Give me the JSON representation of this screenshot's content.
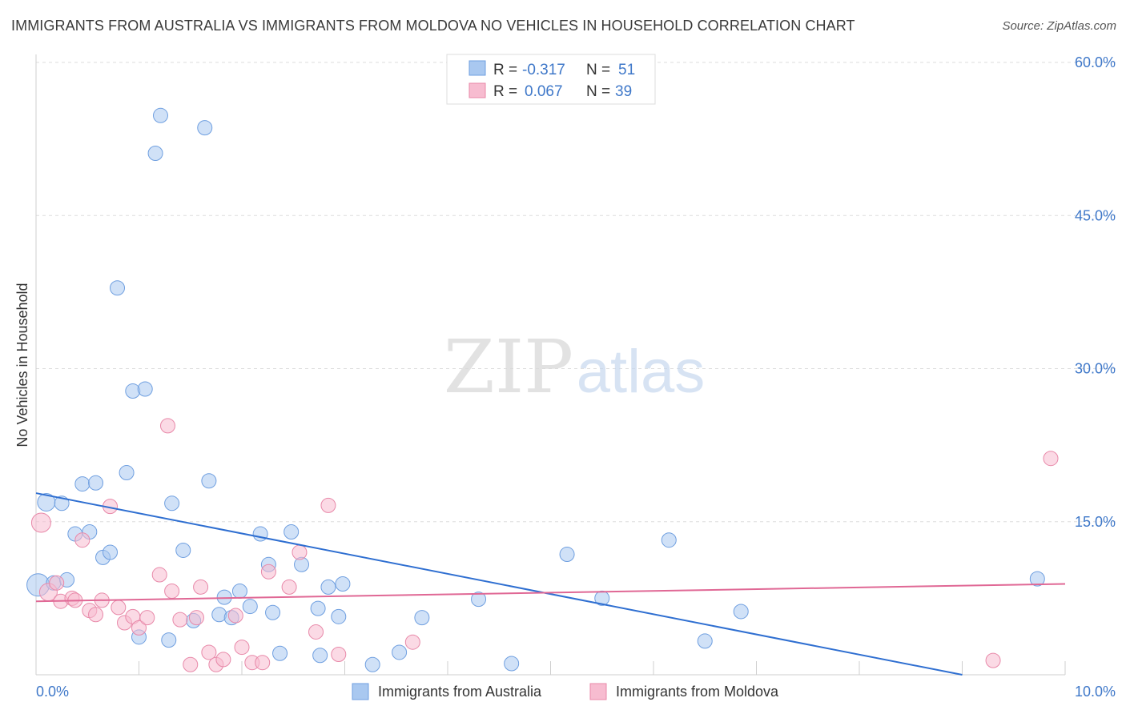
{
  "title": "IMMIGRANTS FROM AUSTRALIA VS IMMIGRANTS FROM MOLDOVA NO VEHICLES IN HOUSEHOLD CORRELATION CHART",
  "source": "Source: ZipAtlas.com",
  "watermark": {
    "zip": "ZIP",
    "atlas": "atlas"
  },
  "legend_top": [
    {
      "r_label": "R =",
      "r_value": "-0.317",
      "n_label": "N =",
      "n_value": "51",
      "color": "#a9c8f0",
      "stroke": "#6f9fe0"
    },
    {
      "r_label": "R =",
      "r_value": "0.067",
      "n_label": "N =",
      "n_value": "39",
      "color": "#f7bcd0",
      "stroke": "#e889a9"
    }
  ],
  "chart_data": {
    "type": "scatter",
    "ylabel": "No Vehicles in Household",
    "xlim": [
      0,
      10
    ],
    "ylim": [
      0,
      60
    ],
    "x_ticks": [
      "0.0%",
      "10.0%"
    ],
    "y_ticks": [
      {
        "value": 60,
        "label": "60.0%"
      },
      {
        "value": 45,
        "label": "45.0%"
      },
      {
        "value": 30,
        "label": "30.0%"
      },
      {
        "value": 15,
        "label": "15.0%"
      }
    ],
    "grid": true,
    "series": [
      {
        "name": "Immigrants from Australia",
        "color": "#a9c8f0",
        "stroke": "#6f9fe0",
        "trend": {
          "x0": 0,
          "y0": 17.8,
          "x1": 9.0,
          "y1": 0.0,
          "color": "#2f6fd1"
        },
        "points": [
          [
            0.02,
            8.8,
            14
          ],
          [
            0.1,
            16.9,
            11
          ],
          [
            0.17,
            9.0,
            9
          ],
          [
            0.25,
            16.8,
            9
          ],
          [
            0.3,
            9.3,
            9
          ],
          [
            0.38,
            13.8,
            9
          ],
          [
            0.45,
            18.7,
            9
          ],
          [
            0.52,
            14.0,
            9
          ],
          [
            0.58,
            18.8,
            9
          ],
          [
            0.65,
            11.5,
            9
          ],
          [
            0.72,
            12.0,
            9
          ],
          [
            0.79,
            37.9,
            9
          ],
          [
            0.88,
            19.8,
            9
          ],
          [
            0.94,
            27.8,
            9
          ],
          [
            1.0,
            3.7,
            9
          ],
          [
            1.06,
            28.0,
            9
          ],
          [
            1.16,
            51.1,
            9
          ],
          [
            1.21,
            54.8,
            9
          ],
          [
            1.29,
            3.4,
            9
          ],
          [
            1.32,
            16.8,
            9
          ],
          [
            1.43,
            12.2,
            9
          ],
          [
            1.53,
            5.3,
            9
          ],
          [
            1.64,
            53.6,
            9
          ],
          [
            1.68,
            19.0,
            9
          ],
          [
            1.78,
            5.9,
            9
          ],
          [
            1.83,
            7.6,
            9
          ],
          [
            1.9,
            5.6,
            9
          ],
          [
            1.98,
            8.2,
            9
          ],
          [
            2.08,
            6.7,
            9
          ],
          [
            2.18,
            13.8,
            9
          ],
          [
            2.26,
            10.8,
            9
          ],
          [
            2.3,
            6.1,
            9
          ],
          [
            2.37,
            2.1,
            9
          ],
          [
            2.48,
            14.0,
            9
          ],
          [
            2.58,
            10.8,
            9
          ],
          [
            2.74,
            6.5,
            9
          ],
          [
            2.76,
            1.9,
            9
          ],
          [
            2.84,
            8.6,
            9
          ],
          [
            2.94,
            5.7,
            9
          ],
          [
            2.98,
            8.9,
            9
          ],
          [
            3.27,
            1.0,
            9
          ],
          [
            3.53,
            2.2,
            9
          ],
          [
            3.75,
            5.6,
            9
          ],
          [
            4.3,
            7.4,
            9
          ],
          [
            4.62,
            1.1,
            9
          ],
          [
            5.16,
            11.8,
            9
          ],
          [
            5.5,
            7.5,
            9
          ],
          [
            6.15,
            13.2,
            9
          ],
          [
            6.5,
            3.3,
            9
          ],
          [
            6.85,
            6.2,
            9
          ],
          [
            9.73,
            9.4,
            9
          ]
        ]
      },
      {
        "name": "Immigrants from Moldova",
        "color": "#f7bcd0",
        "stroke": "#e889a9",
        "trend": {
          "x0": 0,
          "y0": 7.2,
          "x1": 10.0,
          "y1": 8.9,
          "color": "#e06895"
        },
        "points": [
          [
            0.05,
            14.9,
            12
          ],
          [
            0.12,
            8.1,
            11
          ],
          [
            0.2,
            9.0,
            9
          ],
          [
            0.24,
            7.2,
            9
          ],
          [
            0.35,
            7.5,
            9
          ],
          [
            0.38,
            7.3,
            9
          ],
          [
            0.45,
            13.2,
            9
          ],
          [
            0.52,
            6.3,
            9
          ],
          [
            0.58,
            5.9,
            9
          ],
          [
            0.64,
            7.3,
            9
          ],
          [
            0.72,
            16.5,
            9
          ],
          [
            0.8,
            6.6,
            9
          ],
          [
            0.86,
            5.1,
            9
          ],
          [
            0.94,
            5.7,
            9
          ],
          [
            1.0,
            4.6,
            9
          ],
          [
            1.08,
            5.6,
            9
          ],
          [
            1.2,
            9.8,
            9
          ],
          [
            1.28,
            24.4,
            9
          ],
          [
            1.32,
            8.2,
            9
          ],
          [
            1.4,
            5.4,
            9
          ],
          [
            1.5,
            1.0,
            9
          ],
          [
            1.56,
            5.6,
            9
          ],
          [
            1.6,
            8.6,
            9
          ],
          [
            1.68,
            2.2,
            9
          ],
          [
            1.75,
            1.0,
            9
          ],
          [
            1.82,
            1.5,
            9
          ],
          [
            1.94,
            5.8,
            9
          ],
          [
            2.0,
            2.7,
            9
          ],
          [
            2.1,
            1.2,
            9
          ],
          [
            2.2,
            1.2,
            9
          ],
          [
            2.26,
            10.1,
            9
          ],
          [
            2.46,
            8.6,
            9
          ],
          [
            2.56,
            12.0,
            9
          ],
          [
            2.72,
            4.2,
            9
          ],
          [
            2.84,
            16.6,
            9
          ],
          [
            2.94,
            2.0,
            9
          ],
          [
            3.66,
            3.2,
            9
          ],
          [
            9.3,
            1.4,
            9
          ],
          [
            9.86,
            21.2,
            9
          ]
        ]
      }
    ]
  }
}
